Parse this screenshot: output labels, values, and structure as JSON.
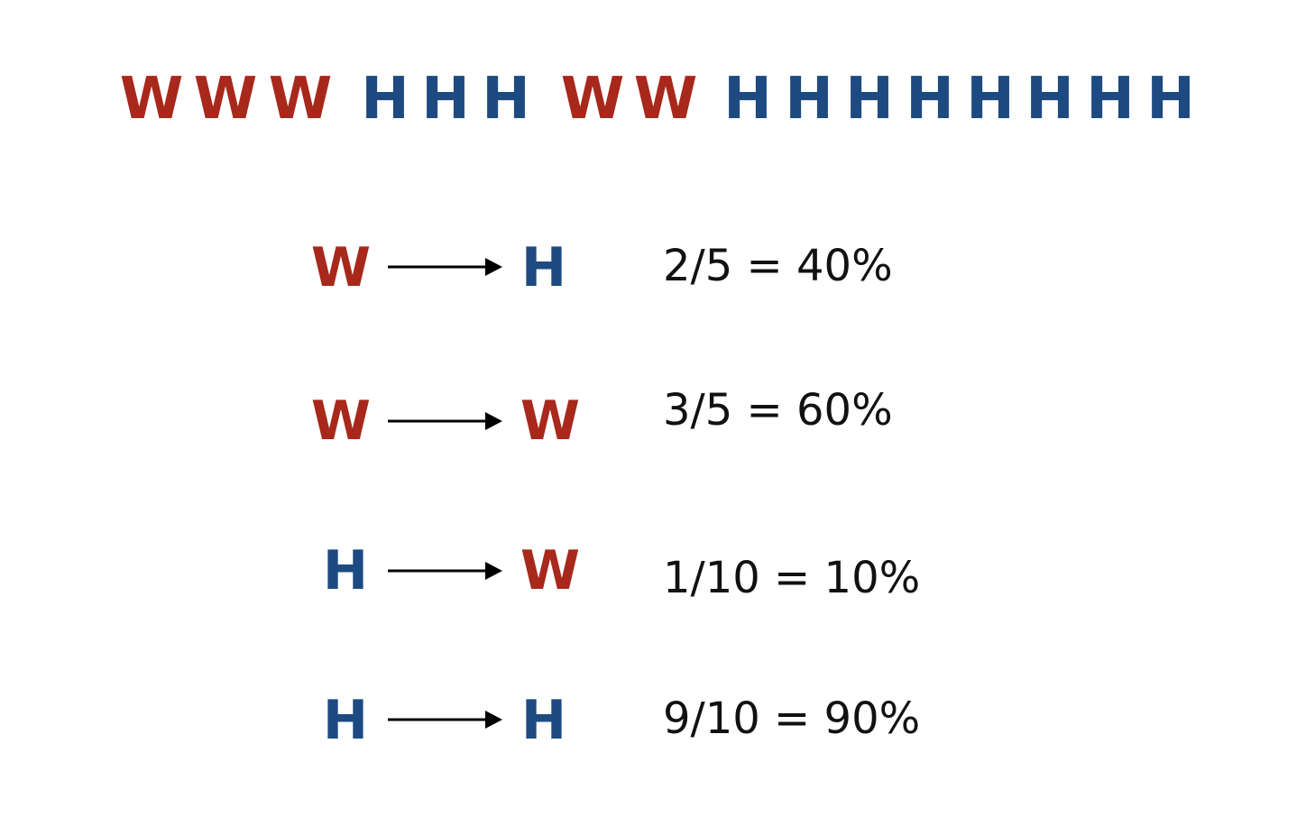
{
  "colors": {
    "W": "#a8281b",
    "H": "#1d4a80",
    "arrow": "#000000",
    "text": "#111111"
  },
  "sequence": [
    "W",
    "W",
    "W",
    "H",
    "H",
    "H",
    "W",
    "W",
    "H",
    "H",
    "H",
    "H",
    "H",
    "H",
    "H",
    "H"
  ],
  "transitions": [
    {
      "from": "W",
      "to": "H",
      "probability": "2/5 = 40%"
    },
    {
      "from": "W",
      "to": "W",
      "probability": "3/5 = 60%"
    },
    {
      "from": "H",
      "to": "W",
      "probability": "1/10 = 10%"
    },
    {
      "from": "H",
      "to": "H",
      "probability": "9/10 = 90%"
    }
  ]
}
